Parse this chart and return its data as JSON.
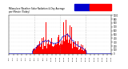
{
  "title": "Milwaukee Weather Solar Radiation & Day Average per Minute (Today)",
  "background_color": "#ffffff",
  "bar_color": "#ff0000",
  "avg_line_color": "#0000cd",
  "legend_blue": "#0000cd",
  "legend_red": "#ff0000",
  "ylim": [
    0,
    1000
  ],
  "xlim": [
    0,
    1440
  ],
  "grid_color": "#bbbbbb",
  "tick_label_color": "#000000",
  "num_points": 1440,
  "dpi": 100,
  "fig_w": 1.6,
  "fig_h": 0.87
}
